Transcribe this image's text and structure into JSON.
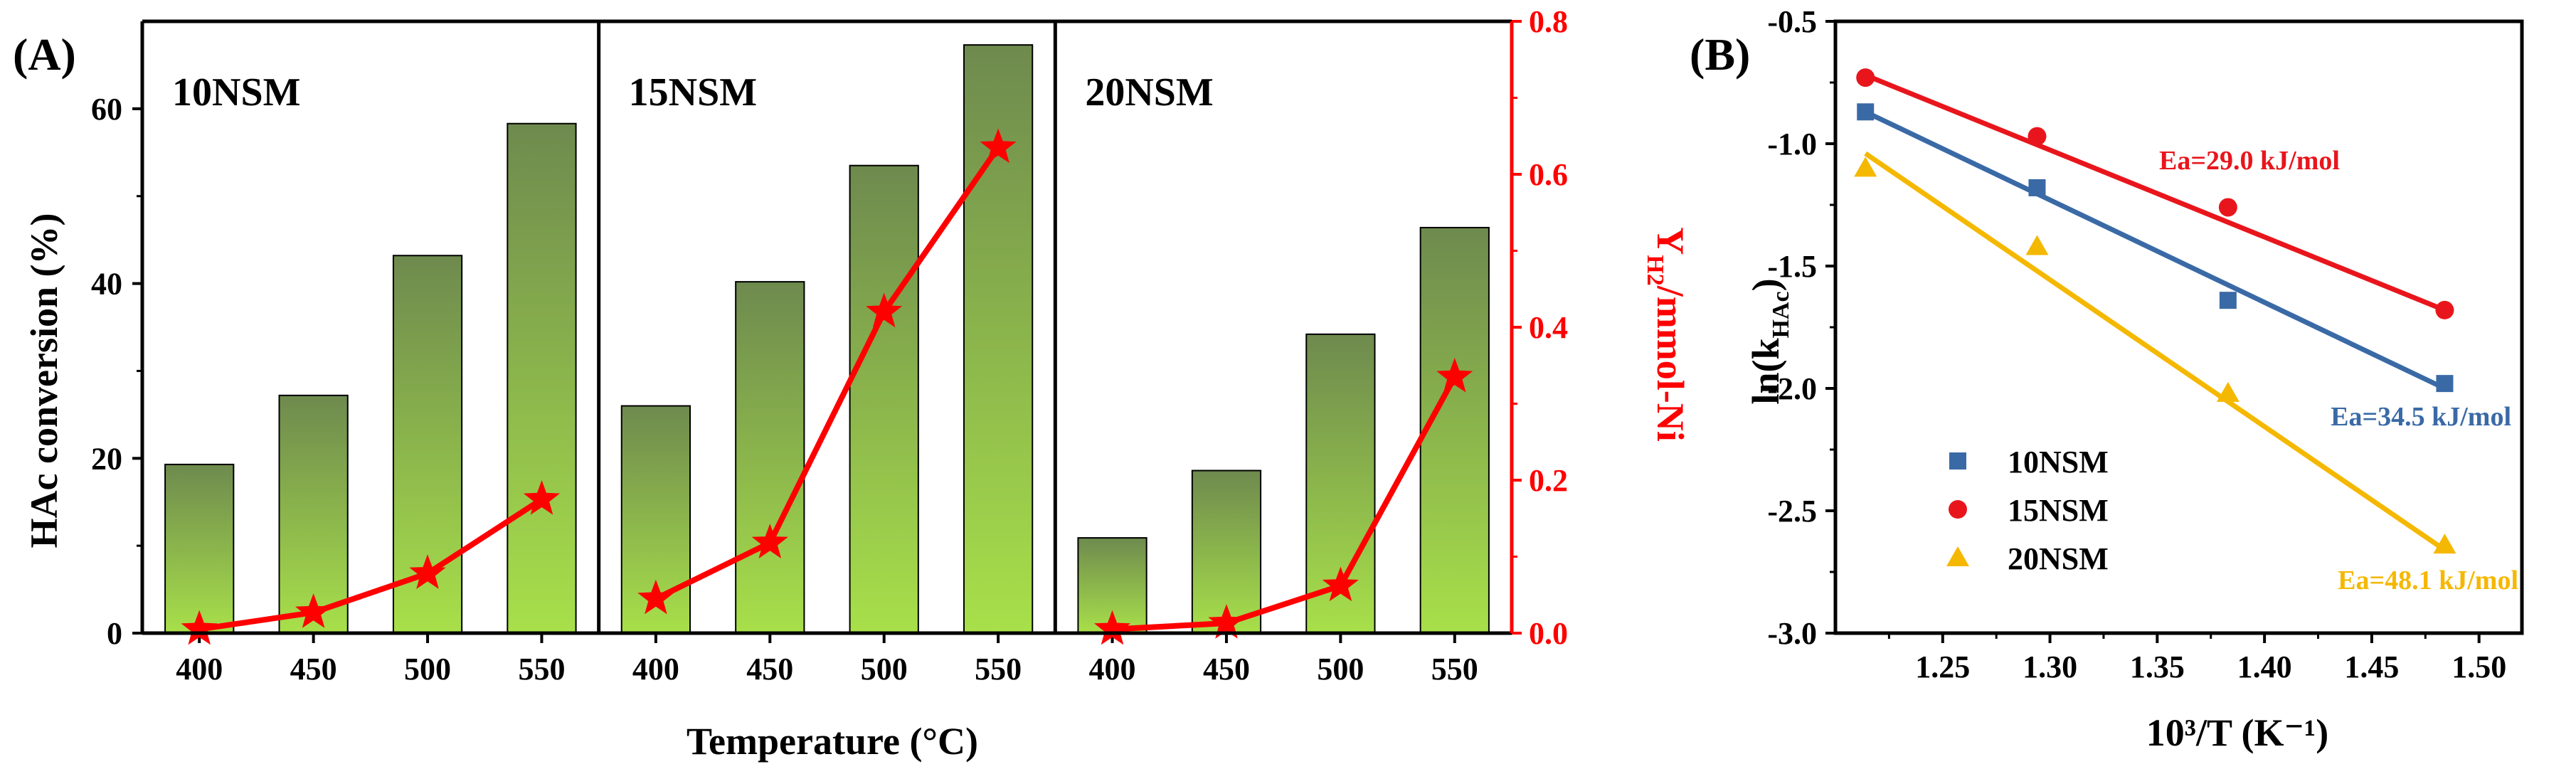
{
  "panel_a": {
    "label": "(A)",
    "chart_data": {
      "type": "bar",
      "title": "",
      "xlabel": "Temperature (°C)",
      "ylabel": "HAc conversion (%)",
      "y2label": "Y_H2/mmol-Ni",
      "ylim": [
        0,
        70
      ],
      "y2lim": [
        0,
        0.8
      ],
      "yticks": [
        0,
        20,
        40,
        60
      ],
      "y2ticks": [
        "0.0",
        "0.2",
        "0.4",
        "0.6",
        "0.8"
      ],
      "panels": [
        {
          "name": "10NSM",
          "categories": [
            "400",
            "450",
            "500",
            "550"
          ],
          "conversion": [
            19.3,
            27.2,
            43.2,
            58.3
          ],
          "yh2": [
            0.005,
            0.027,
            0.078,
            0.175
          ]
        },
        {
          "name": "15NSM",
          "categories": [
            "400",
            "450",
            "500",
            "550"
          ],
          "conversion": [
            26.0,
            40.2,
            53.5,
            67.3
          ],
          "yh2": [
            0.045,
            0.118,
            0.42,
            0.635
          ]
        },
        {
          "name": "20NSM",
          "categories": [
            "400",
            "450",
            "500",
            "550"
          ],
          "conversion": [
            10.9,
            18.6,
            34.2,
            46.4
          ],
          "yh2": [
            0.005,
            0.013,
            0.062,
            0.335
          ]
        }
      ]
    }
  },
  "panel_b": {
    "label": "(B)",
    "chart_data": {
      "type": "scatter",
      "xlabel": "10³/T (K⁻¹)",
      "ylabel": "ln(k_HAc)",
      "xlim": [
        1.2,
        1.52
      ],
      "ylim": [
        -3.0,
        -0.5
      ],
      "xticks": [
        "1.25",
        "1.30",
        "1.35",
        "1.40",
        "1.45",
        "1.50"
      ],
      "yticks": [
        "-0.5",
        "-1.0",
        "-1.5",
        "-2.0",
        "-2.5",
        "-3.0"
      ],
      "legend_position": "bottom-left",
      "series": [
        {
          "name": "10NSM",
          "marker": "square",
          "color": "#3a6aa6",
          "x": [
            1.214,
            1.294,
            1.383,
            1.484
          ],
          "y": [
            -0.87,
            -1.18,
            -1.64,
            -1.98
          ],
          "fit": [
            [
              1.214,
              -0.87
            ],
            [
              1.484,
              -2.0
            ]
          ],
          "annotation": "Ea=34.5 kJ/mol"
        },
        {
          "name": "15NSM",
          "marker": "circle",
          "color": "#e8161c",
          "x": [
            1.214,
            1.294,
            1.383,
            1.484
          ],
          "y": [
            -0.73,
            -0.97,
            -1.26,
            -1.68
          ],
          "fit": [
            [
              1.214,
              -0.72
            ],
            [
              1.484,
              -1.68
            ]
          ],
          "annotation": "Ea=29.0 kJ/mol"
        },
        {
          "name": "20NSM",
          "marker": "triangle",
          "color": "#f5b800",
          "x": [
            1.214,
            1.294,
            1.383,
            1.484
          ],
          "y": [
            -1.1,
            -1.42,
            -2.02,
            -2.64
          ],
          "fit": [
            [
              1.214,
              -1.04
            ],
            [
              1.484,
              -2.66
            ]
          ],
          "annotation": "Ea=48.1 kJ/mol"
        }
      ]
    }
  },
  "colors": {
    "bar_top": "#6e8a4e",
    "bar_bottom": "#a8e04a",
    "line_red": "#ff0000",
    "axis": "#000000"
  }
}
